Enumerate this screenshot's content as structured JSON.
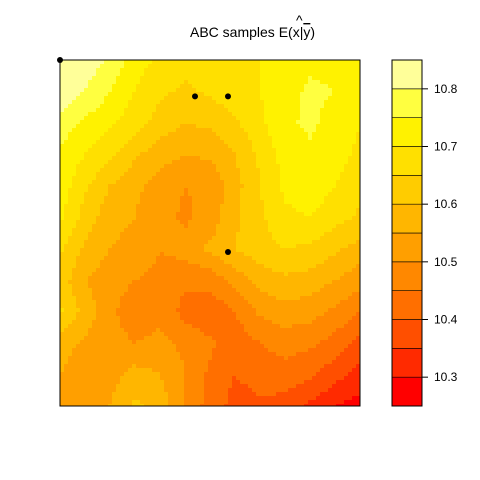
{
  "chart_data": {
    "type": "heatmap",
    "subtype": "filled-contour",
    "title": {
      "prefix": "ABC samples E(",
      "main": "x",
      "hat": "^",
      "sep": "|",
      "given": "y",
      "suffix": ")"
    },
    "xlabel": "",
    "ylabel": "",
    "axes_shown": false,
    "grid": false,
    "legend": {
      "placement": "right",
      "ticks": [
        "10.3",
        "10.4",
        "10.5",
        "10.6",
        "10.7",
        "10.8"
      ],
      "tick_values": [
        10.3,
        10.4,
        10.5,
        10.6,
        10.7,
        10.8
      ],
      "range": [
        10.25,
        10.85
      ]
    },
    "levels": [
      10.25,
      10.3,
      10.35,
      10.4,
      10.45,
      10.5,
      10.55,
      10.6,
      10.65,
      10.7,
      10.75,
      10.8,
      10.85
    ],
    "colors": [
      "#FF0000",
      "#FF2A00",
      "#FF4F00",
      "#FF6F00",
      "#FF8800",
      "#FF9F00",
      "#FFB600",
      "#FFCC00",
      "#FFE000",
      "#FFF200",
      "#FFFF40",
      "#FFFF99"
    ],
    "grid_values": [
      [
        10.82,
        10.83,
        10.79,
        10.72,
        10.69,
        10.67,
        10.68,
        10.69,
        10.7,
        10.72,
        10.74,
        10.73,
        10.71
      ],
      [
        10.84,
        10.8,
        10.75,
        10.7,
        10.66,
        10.64,
        10.66,
        10.68,
        10.7,
        10.73,
        10.76,
        10.75,
        10.71
      ],
      [
        10.78,
        10.74,
        10.71,
        10.67,
        10.63,
        10.6,
        10.61,
        10.64,
        10.69,
        10.74,
        10.76,
        10.73,
        10.7
      ],
      [
        10.74,
        10.7,
        10.66,
        10.61,
        10.57,
        10.55,
        10.56,
        10.6,
        10.66,
        10.72,
        10.74,
        10.72,
        10.69
      ],
      [
        10.73,
        10.66,
        10.6,
        10.56,
        10.53,
        10.5,
        10.51,
        10.58,
        10.65,
        10.71,
        10.73,
        10.7,
        10.67
      ],
      [
        10.71,
        10.63,
        10.57,
        10.55,
        10.52,
        10.49,
        10.52,
        10.59,
        10.64,
        10.69,
        10.7,
        10.67,
        10.64
      ],
      [
        10.66,
        10.59,
        10.55,
        10.53,
        10.5,
        10.52,
        10.56,
        10.6,
        10.63,
        10.65,
        10.64,
        10.61,
        10.58
      ],
      [
        10.63,
        10.55,
        10.52,
        10.5,
        10.49,
        10.46,
        10.47,
        10.52,
        10.57,
        10.59,
        10.58,
        10.55,
        10.52
      ],
      [
        10.66,
        10.58,
        10.51,
        10.47,
        10.49,
        10.43,
        10.41,
        10.45,
        10.51,
        10.53,
        10.52,
        10.49,
        10.45
      ],
      [
        10.58,
        10.54,
        10.52,
        10.5,
        10.51,
        10.49,
        10.46,
        10.42,
        10.45,
        10.47,
        10.46,
        10.43,
        10.38
      ],
      [
        10.55,
        10.5,
        10.53,
        10.57,
        10.55,
        10.5,
        10.44,
        10.4,
        10.42,
        10.43,
        10.41,
        10.37,
        10.33
      ],
      [
        10.54,
        10.51,
        10.55,
        10.61,
        10.58,
        10.49,
        10.43,
        10.38,
        10.39,
        10.38,
        10.34,
        10.3,
        10.28
      ]
    ],
    "points": [
      {
        "x": 0.0,
        "y": 1.0
      },
      {
        "x": 0.45,
        "y": 0.895
      },
      {
        "x": 0.56,
        "y": 0.895
      },
      {
        "x": 0.56,
        "y": 0.445
      }
    ]
  }
}
